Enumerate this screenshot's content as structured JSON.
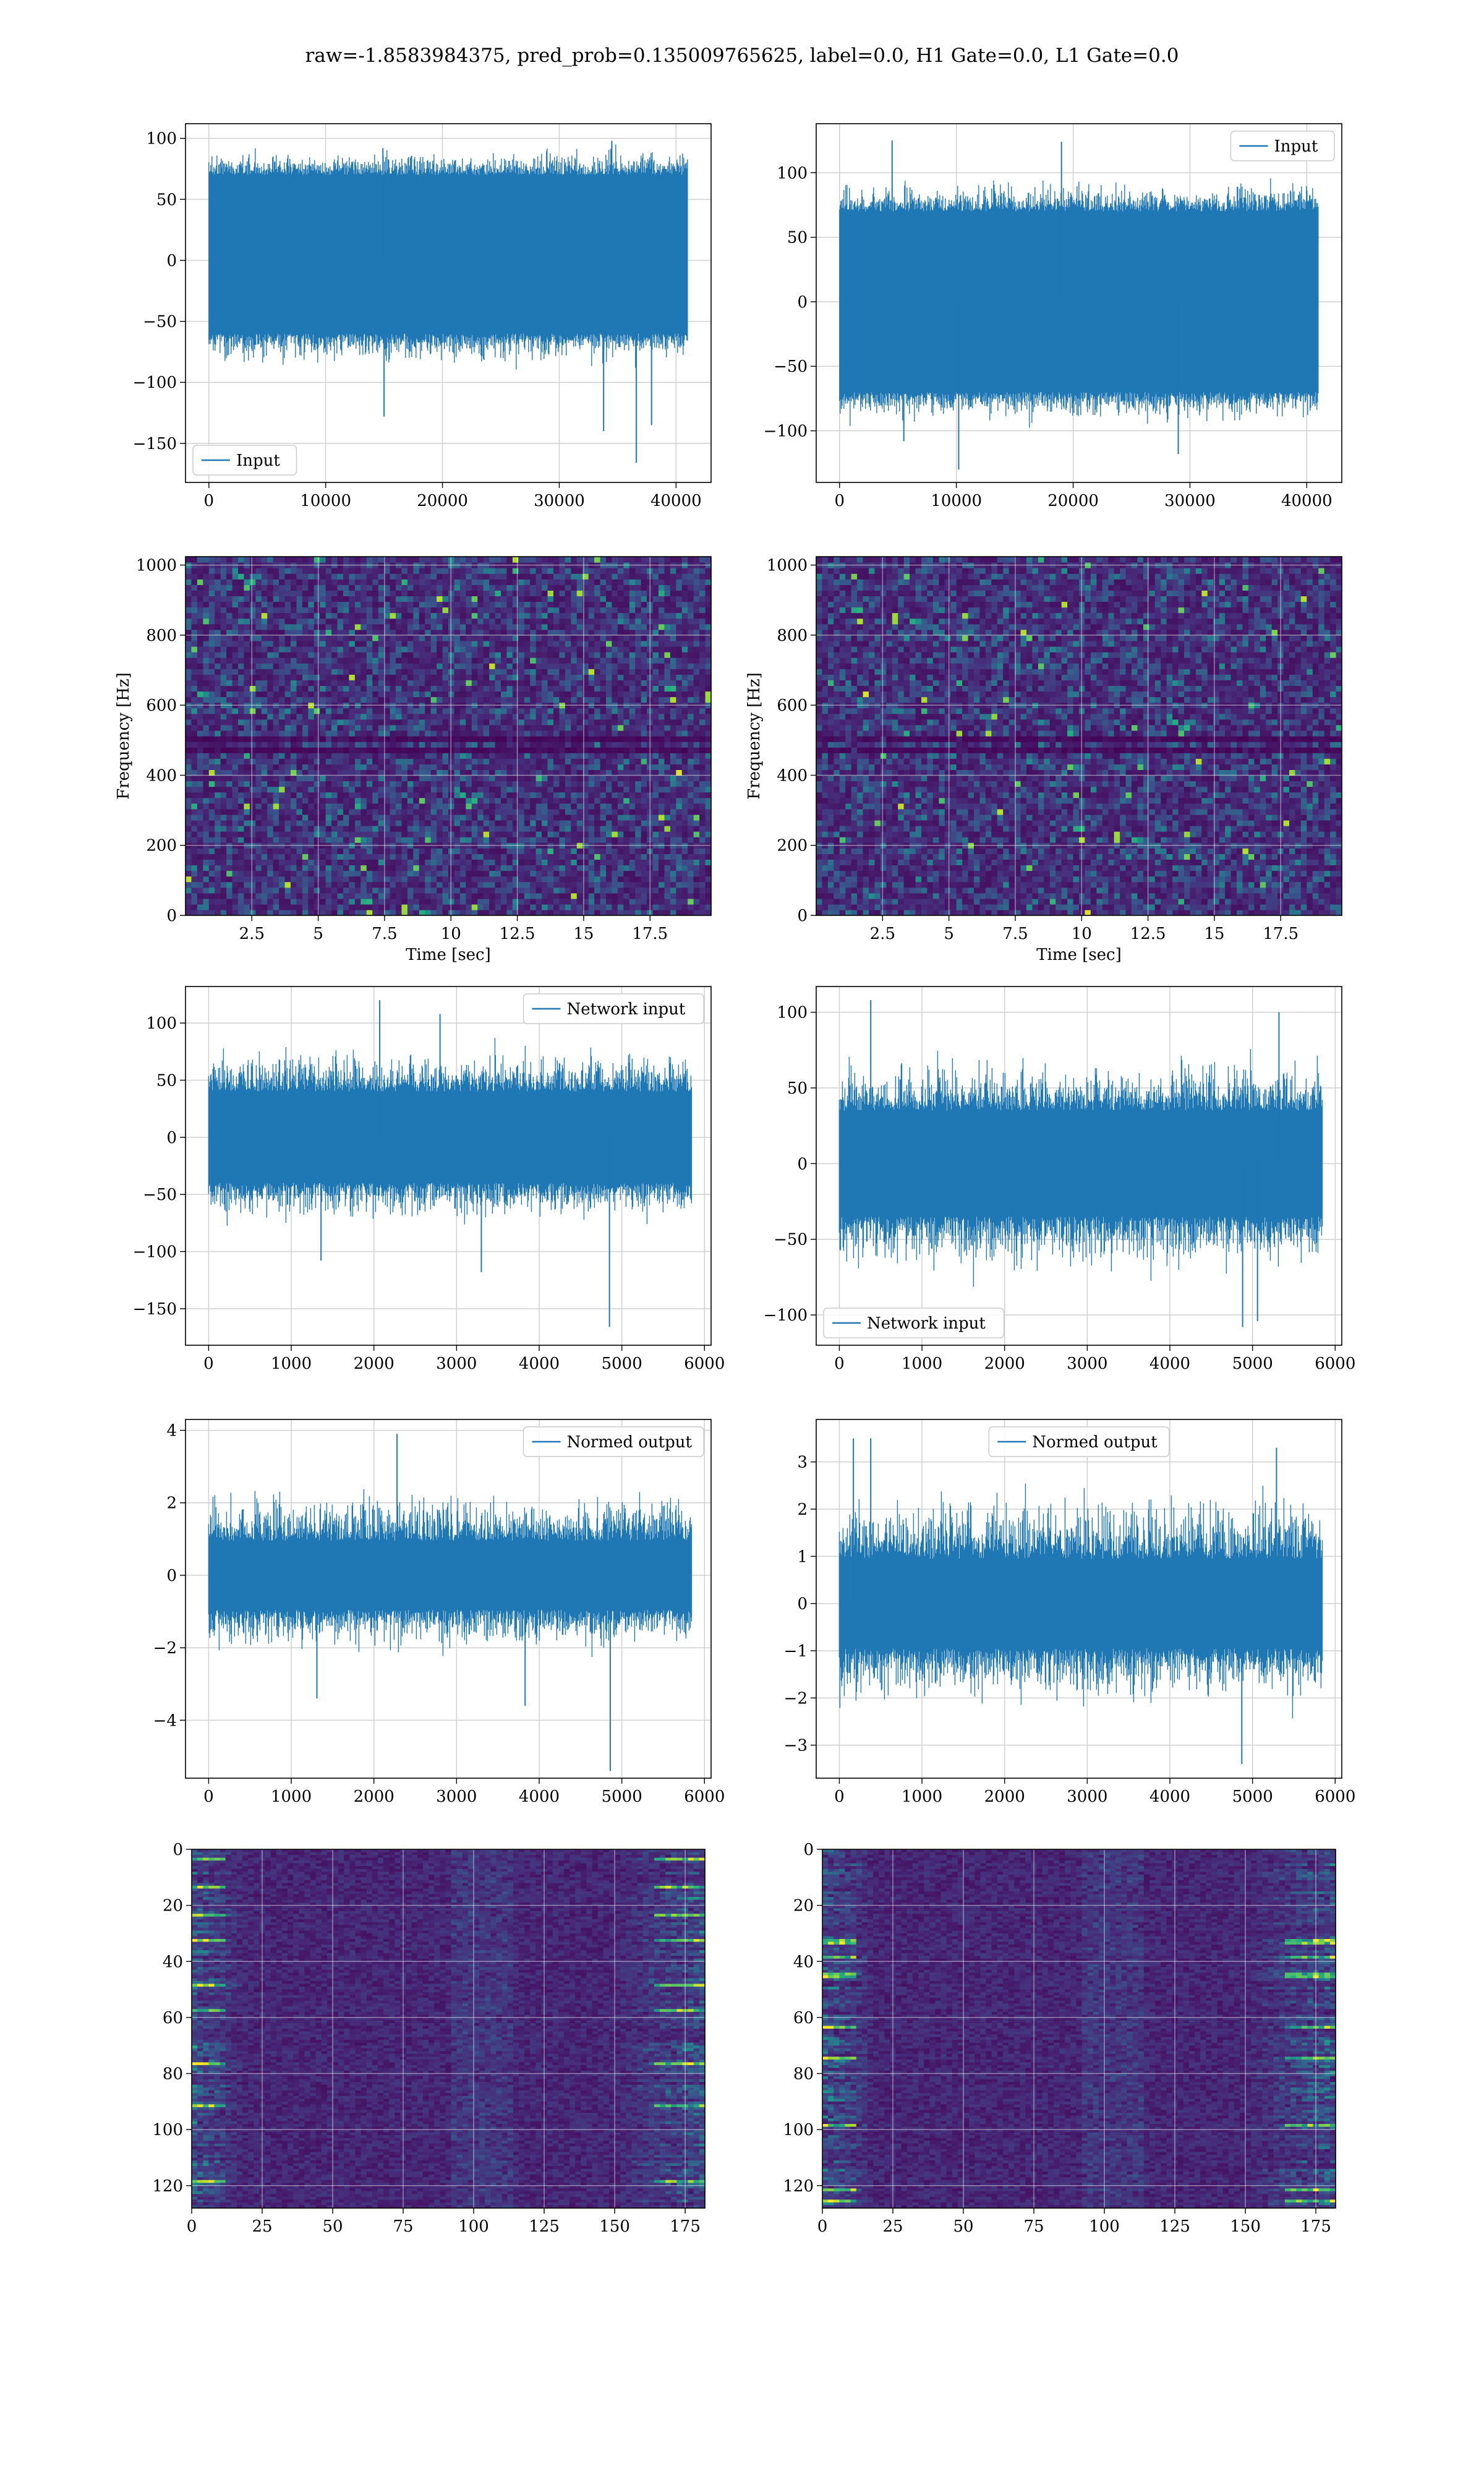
{
  "figure": {
    "suptitle": "raw=-1.8583984375, pred_prob=0.135009765625, label=0.0, H1 Gate=0.0, L1 Gate=0.0"
  },
  "colors": {
    "line": "#1f77b4",
    "grid": "#d0d0d0",
    "viridis": [
      "#440154",
      "#472c7a",
      "#3b518b",
      "#2c718e",
      "#21918c",
      "#27ad81",
      "#5cc863",
      "#aadc32",
      "#fde725"
    ]
  },
  "chart_data": [
    {
      "id": "row1-left",
      "type": "line",
      "legend": "Input",
      "legend_loc": "lower left",
      "xlim": [
        -2000,
        43000
      ],
      "ylim": [
        -182,
        112
      ],
      "xticks": [
        0,
        10000,
        20000,
        30000,
        40000
      ],
      "yticks": [
        -150,
        -100,
        -50,
        0,
        50,
        100
      ],
      "x_range": [
        0,
        40960
      ],
      "envelope": [
        -60,
        70
      ],
      "peaks": [
        -101,
        105
      ],
      "spikes": [
        [
          36600,
          -166
        ],
        [
          33800,
          -140
        ],
        [
          37900,
          -135
        ],
        [
          15000,
          -128
        ],
        [
          14900,
          92
        ],
        [
          34500,
          98
        ]
      ]
    },
    {
      "id": "row1-right",
      "type": "line",
      "legend": "Input",
      "legend_loc": "upper right",
      "xlim": [
        -2000,
        43000
      ],
      "ylim": [
        -140,
        138
      ],
      "xticks": [
        0,
        10000,
        20000,
        30000,
        40000
      ],
      "yticks": [
        -100,
        -50,
        0,
        50,
        100
      ],
      "x_range": [
        0,
        40960
      ],
      "envelope": [
        -70,
        70
      ],
      "peaks": [
        -108,
        110
      ],
      "spikes": [
        [
          4500,
          125
        ],
        [
          19000,
          124
        ],
        [
          10200,
          -130
        ],
        [
          29000,
          -118
        ],
        [
          5500,
          -108
        ]
      ]
    },
    {
      "id": "row2-left",
      "type": "heatmap",
      "xlabel": "Time [sec]",
      "ylabel": "Frequency [Hz]",
      "xlim": [
        0,
        19.8
      ],
      "ylim": [
        0,
        1024
      ],
      "xticks": [
        2.5,
        5.0,
        7.5,
        10.0,
        12.5,
        15.0,
        17.5
      ],
      "yticks": [
        0,
        200,
        400,
        600,
        800,
        1000
      ],
      "style": "spectrogram",
      "dark_bands": [
        500,
        470
      ]
    },
    {
      "id": "row2-right",
      "type": "heatmap",
      "xlabel": "Time [sec]",
      "ylabel": "Frequency [Hz]",
      "xlim": [
        0,
        19.8
      ],
      "ylim": [
        0,
        1024
      ],
      "xticks": [
        2.5,
        5.0,
        7.5,
        10.0,
        12.5,
        15.0,
        17.5
      ],
      "yticks": [
        0,
        200,
        400,
        600,
        800,
        1000
      ],
      "style": "spectrogram",
      "dark_bands": [
        500,
        470
      ]
    },
    {
      "id": "row3-left",
      "type": "line",
      "legend": "Network input",
      "legend_loc": "upper right",
      "xlim": [
        -280,
        6080
      ],
      "ylim": [
        -182,
        132
      ],
      "xticks": [
        0,
        1000,
        2000,
        3000,
        4000,
        5000,
        6000
      ],
      "yticks": [
        -150,
        -100,
        -50,
        0,
        50,
        100
      ],
      "x_range": [
        0,
        5840
      ],
      "envelope": [
        -40,
        40
      ],
      "peaks": [
        -95,
        105
      ],
      "spikes": [
        [
          4850,
          -166
        ],
        [
          3300,
          -118
        ],
        [
          2070,
          120
        ],
        [
          1360,
          -108
        ],
        [
          2800,
          108
        ]
      ]
    },
    {
      "id": "row3-right",
      "type": "line",
      "legend": "Network input",
      "legend_loc": "lower left",
      "xlim": [
        -280,
        6080
      ],
      "ylim": [
        -120,
        117
      ],
      "xticks": [
        0,
        1000,
        2000,
        3000,
        4000,
        5000,
        6000
      ],
      "yticks": [
        -100,
        -50,
        0,
        50,
        100
      ],
      "x_range": [
        0,
        5840
      ],
      "envelope": [
        -35,
        35
      ],
      "peaks": [
        -95,
        95
      ],
      "spikes": [
        [
          380,
          108
        ],
        [
          4880,
          -108
        ],
        [
          5060,
          -104
        ],
        [
          5320,
          100
        ]
      ]
    },
    {
      "id": "row4-left",
      "type": "line",
      "legend": "Normed output",
      "legend_loc": "upper right",
      "xlim": [
        -280,
        6080
      ],
      "ylim": [
        -5.6,
        4.3
      ],
      "xticks": [
        0,
        1000,
        2000,
        3000,
        4000,
        5000,
        6000
      ],
      "yticks": [
        -4,
        -2,
        0,
        2,
        4
      ],
      "x_range": [
        0,
        5840
      ],
      "envelope": [
        -0.95,
        0.95
      ],
      "peaks": [
        -2.9,
        3.2
      ],
      "spikes": [
        [
          4860,
          -5.4
        ],
        [
          2280,
          3.9
        ],
        [
          3830,
          -3.6
        ],
        [
          1310,
          -3.4
        ]
      ]
    },
    {
      "id": "row4-right",
      "type": "line",
      "legend": "Normed output",
      "legend_loc": "upper center",
      "xlim": [
        -280,
        6080
      ],
      "ylim": [
        -3.7,
        3.9
      ],
      "xticks": [
        0,
        1000,
        2000,
        3000,
        4000,
        5000,
        6000
      ],
      "yticks": [
        -3,
        -2,
        -1,
        0,
        1,
        2,
        3
      ],
      "x_range": [
        0,
        5840
      ],
      "envelope": [
        -0.95,
        0.95
      ],
      "peaks": [
        -3.0,
        3.3
      ],
      "spikes": [
        [
          170,
          3.5
        ],
        [
          380,
          3.5
        ],
        [
          4870,
          -3.4
        ],
        [
          5290,
          3.3
        ]
      ]
    },
    {
      "id": "row5-left",
      "type": "heatmap",
      "xlabel": "",
      "ylabel": "",
      "xlim": [
        0,
        182
      ],
      "ylim": [
        128,
        0
      ],
      "xticks": [
        0,
        25,
        50,
        75,
        100,
        125,
        150,
        175
      ],
      "yticks": [
        0,
        20,
        40,
        60,
        80,
        100,
        120
      ],
      "style": "activation",
      "dark_bands": []
    },
    {
      "id": "row5-right",
      "type": "heatmap",
      "xlabel": "",
      "ylabel": "",
      "xlim": [
        0,
        182
      ],
      "ylim": [
        128,
        0
      ],
      "xticks": [
        0,
        25,
        50,
        75,
        100,
        125,
        150,
        175
      ],
      "yticks": [
        0,
        20,
        40,
        60,
        80,
        100,
        120
      ],
      "style": "activation",
      "dark_bands": []
    }
  ]
}
